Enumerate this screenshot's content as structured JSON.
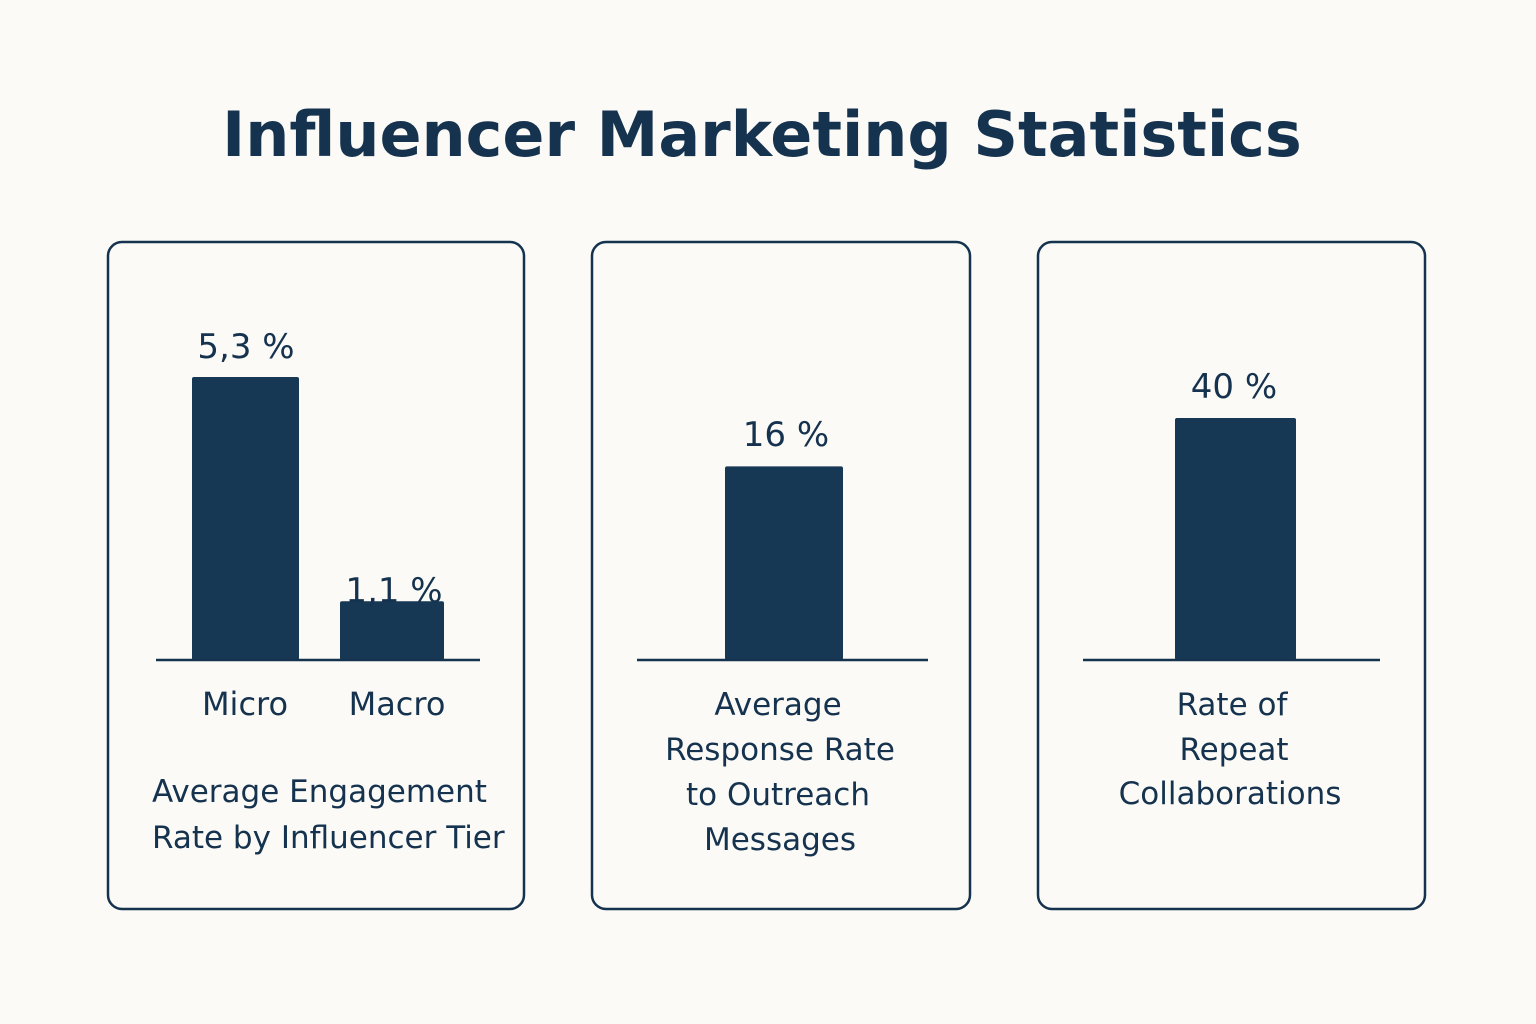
{
  "title": "Influencer Marketing Statistics",
  "colors": {
    "background": "#fbfaf6",
    "bar": "#163855",
    "text": "#15324e",
    "border": "#15324e"
  },
  "chart_data": [
    {
      "type": "bar",
      "categories": [
        "Micro",
        "Macro"
      ],
      "values": [
        5.3,
        1.1
      ],
      "value_labels": [
        "5,3 %",
        "1,1 %"
      ],
      "caption": [
        "Average Engagement",
        "Rate by Influencer Tier"
      ],
      "unit": "%"
    },
    {
      "type": "bar",
      "categories": [
        ""
      ],
      "values": [
        16
      ],
      "value_labels": [
        "16 %"
      ],
      "caption": [
        "Average",
        "Response Rate",
        "to Outreach",
        "Messages"
      ],
      "unit": "%"
    },
    {
      "type": "bar",
      "categories": [
        ""
      ],
      "values": [
        40
      ],
      "value_labels": [
        "40 %"
      ],
      "caption": [
        "Rate of",
        "Repeat",
        "Collaborations"
      ],
      "unit": "%"
    }
  ]
}
